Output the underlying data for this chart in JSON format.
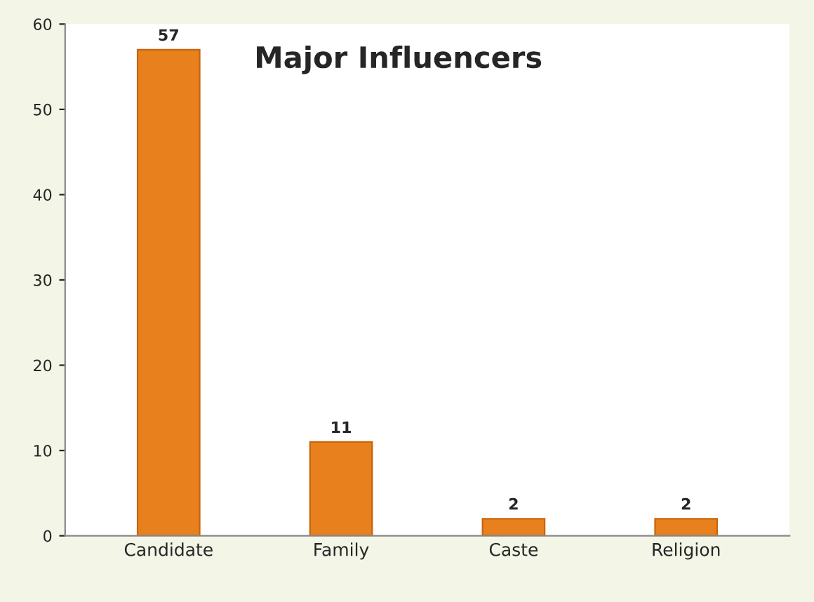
{
  "chart_data": {
    "type": "bar",
    "title": "Major Influencers",
    "categories": [
      "Candidate",
      "Family",
      "Caste",
      "Religion"
    ],
    "values": [
      57,
      11,
      2,
      2
    ],
    "color": "#e8801e",
    "ylim": [
      0,
      60
    ],
    "yticks": [
      0,
      10,
      20,
      30,
      40,
      50,
      60
    ],
    "data_labels": true,
    "grid": false
  }
}
